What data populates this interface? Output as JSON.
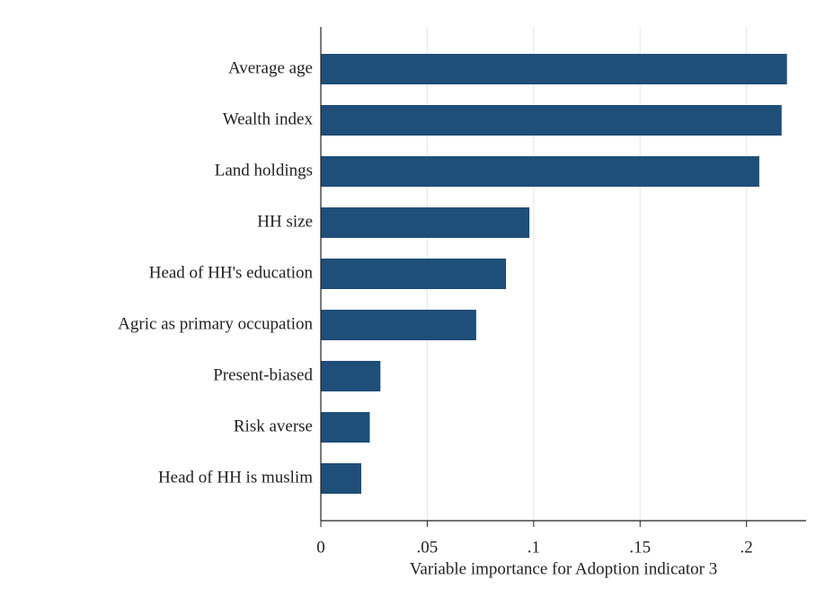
{
  "chart_data": {
    "type": "barh",
    "x_label": "Variable importance for Adoption indicator 3",
    "categories": [
      "Average age",
      "Wealth index",
      "Land holdings",
      "HH size",
      "Head of HH's education",
      "Agric as primary occupation",
      "Present-biased",
      "Risk averse",
      "Head of HH is muslim"
    ],
    "values": [
      0.219,
      0.2165,
      0.206,
      0.098,
      0.087,
      0.073,
      0.028,
      0.023,
      0.019
    ],
    "color": "#1f4e79",
    "xlim": [
      0,
      0.228
    ],
    "xticks": [
      0,
      {
        "value": 0.05,
        "label": ".05"
      },
      {
        "value": 0.1,
        "label": ".1"
      },
      {
        "value": 0.15,
        "label": ".15"
      },
      {
        "value": 0.2,
        "label": ".2"
      }
    ],
    "grid": true
  }
}
